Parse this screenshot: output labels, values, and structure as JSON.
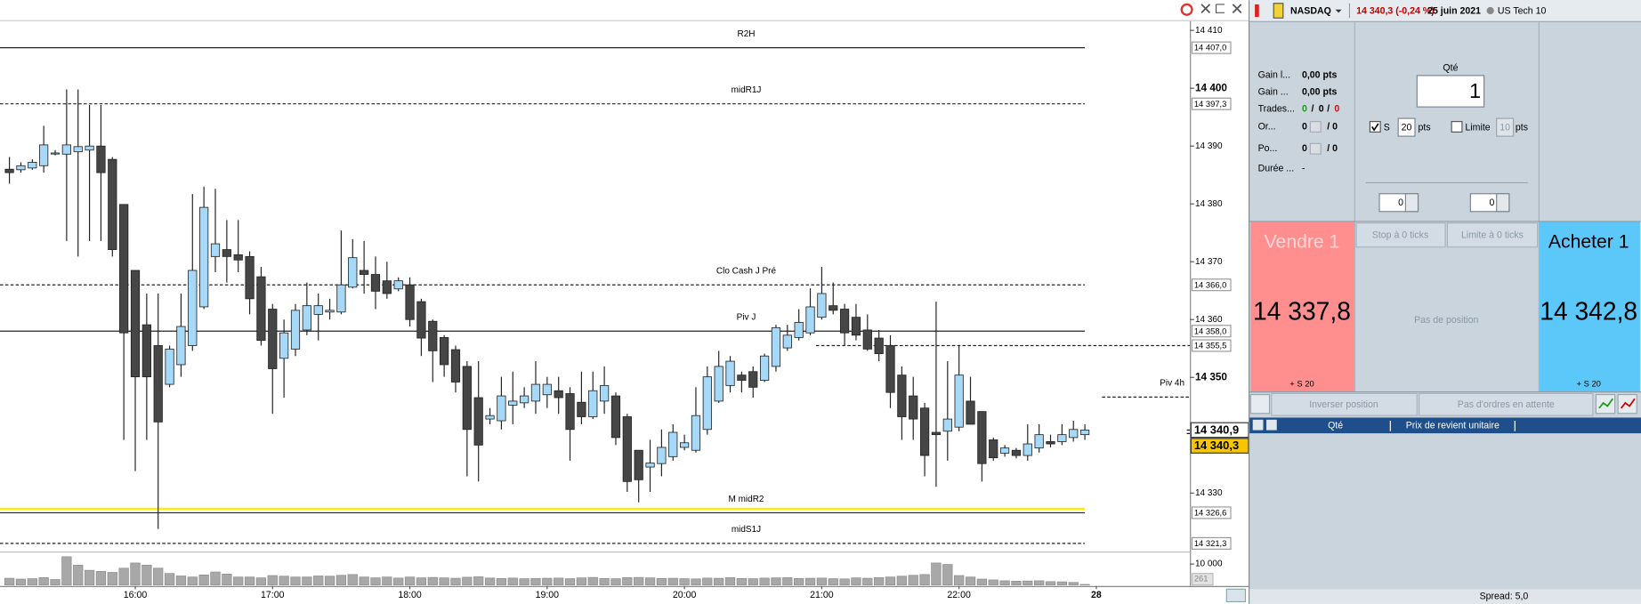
{
  "chart_data": {
    "type": "candlestick",
    "categories": [
      null,
      null,
      null,
      null,
      null,
      null,
      null,
      null,
      null,
      null,
      null,
      "16:00",
      null,
      null,
      null,
      null,
      null,
      null,
      null,
      null,
      null,
      null,
      null,
      "17:00",
      null,
      null,
      null,
      null,
      null,
      null,
      null,
      null,
      null,
      null,
      null,
      "18:00",
      null,
      null,
      null,
      null,
      null,
      null,
      null,
      null,
      null,
      null,
      null,
      "19:00",
      null,
      null,
      null,
      null,
      null,
      null,
      null,
      null,
      null,
      null,
      null,
      "20:00",
      null,
      null,
      null,
      null,
      null,
      null,
      null,
      null,
      null,
      null,
      null,
      "21:00",
      null,
      null,
      null,
      null,
      null,
      null,
      null,
      null,
      null,
      null,
      null,
      "22:00",
      null,
      null,
      null,
      null,
      null,
      null,
      null,
      null,
      null,
      null,
      null,
      "28",
      null,
      null,
      null,
      null,
      null,
      null,
      null,
      null
    ],
    "open": [
      14386.0,
      14385.9,
      14386.2,
      14386.6,
      14388.8,
      14388.6,
      14389.0,
      14389.3,
      14390.0,
      14387.7,
      14379.9,
      14368.5,
      14359.1,
      14355.5,
      14348.8,
      14352.2,
      14355.5,
      14362.2,
      14370.9,
      14372.1,
      14371.2,
      14370.9,
      14367.4,
      14361.8,
      14353.3,
      14354.9,
      14358.2,
      14360.9,
      14361.3,
      14361.3,
      14365.6,
      14368.5,
      14367.8,
      14366.7,
      14365.3,
      14366.0,
      14363.1,
      14359.7,
      14356.9,
      14354.8,
      14351.9,
      14346.5,
      14342.8,
      14342.5,
      14345.2,
      14345.6,
      14345.9,
      14347.0,
      14347.7,
      14347.2,
      14345.7,
      14343.2,
      14345.9,
      14346.8,
      14343.2,
      14337.4,
      14334.5,
      14335.1,
      14336.3,
      14337.9,
      14337.4,
      14341.0,
      14345.9,
      14348.6,
      14350.4,
      14351.0,
      14349.5,
      14351.9,
      14355.1,
      14356.9,
      14357.7,
      14360.4,
      14362.4,
      14361.8,
      14360.4,
      14358.2,
      14356.8,
      14355.5,
      14350.4,
      14346.8,
      14344.7,
      14340.5,
      14340.7,
      14341.4,
      14345.9,
      14344.1,
      14339.2,
      14336.9,
      14337.4,
      14336.5,
      14337.8,
      14338.9,
      14338.9,
      14339.6,
      14340.1,
      null,
      null,
      null,
      null,
      null,
      null,
      null,
      null,
      null
    ],
    "high": [
      14388.1,
      14387.2,
      14387.7,
      14393.5,
      14389.3,
      14399.8,
      14399.8,
      14397.1,
      14397.1,
      14388.1,
      14379.9,
      14368.5,
      14364.5,
      14364.5,
      14355.5,
      14364.5,
      14381.7,
      14383.0,
      14382.6,
      14377.2,
      14377.2,
      14371.8,
      14369.1,
      14362.7,
      14360.0,
      14362.7,
      14366.4,
      14364.5,
      14363.6,
      14375.4,
      14373.9,
      14373.6,
      14370.9,
      14370.0,
      14367.3,
      14367.3,
      14363.6,
      14360.0,
      14357.3,
      14355.5,
      14352.8,
      14352.8,
      14344.7,
      14350.1,
      14351.0,
      14348.3,
      14352.8,
      14350.1,
      14350.1,
      14348.3,
      14351.0,
      14351.0,
      14351.9,
      14347.4,
      14343.7,
      14337.4,
      14339.2,
      14341.0,
      14341.9,
      14340.1,
      14348.3,
      14351.9,
      14354.6,
      14353.7,
      14351.0,
      14351.9,
      14354.1,
      14359.1,
      14359.1,
      14361.8,
      14365.4,
      14369.1,
      14366.4,
      14362.7,
      14362.7,
      14360.9,
      14358.2,
      14357.3,
      14351.9,
      14350.1,
      14345.6,
      14363.1,
      14352.8,
      14355.5,
      14350.1,
      14344.1,
      14339.6,
      14338.3,
      14337.8,
      14341.9,
      14341.9,
      14340.1,
      14341.9,
      14342.5,
      14341.9,
      null,
      null,
      null,
      null,
      null,
      null,
      null,
      null,
      null
    ],
    "low": [
      14383.5,
      14385.4,
      14385.9,
      14385.4,
      14388.4,
      14373.6,
      14370.9,
      14373.6,
      14373.6,
      14370.9,
      14339.2,
      14333.8,
      14339.2,
      14323.8,
      14348.3,
      14350.1,
      14354.6,
      14361.8,
      14368.2,
      14366.4,
      14368.2,
      14360.9,
      14355.5,
      14343.7,
      14346.5,
      14353.7,
      14357.3,
      14356.4,
      14360.0,
      14360.9,
      14365.4,
      14364.5,
      14361.8,
      14363.6,
      14364.9,
      14358.8,
      14353.7,
      14349.2,
      14350.1,
      14347.4,
      14332.9,
      14332.0,
      14341.9,
      14341.0,
      14341.9,
      14344.7,
      14343.7,
      14344.7,
      14343.7,
      14335.6,
      14341.9,
      14342.8,
      14343.7,
      14338.3,
      14330.2,
      14328.4,
      14330.2,
      14332.9,
      14335.6,
      14337.4,
      14337.0,
      14340.1,
      14345.6,
      14347.4,
      14347.4,
      14346.5,
      14349.2,
      14351.0,
      14354.6,
      14356.4,
      14357.3,
      14360.0,
      14360.9,
      14355.5,
      14356.4,
      14354.6,
      14352.8,
      14344.7,
      14339.2,
      14339.2,
      14332.9,
      14331.1,
      14335.6,
      14340.7,
      14341.9,
      14332.0,
      14335.6,
      14336.3,
      14336.0,
      14335.6,
      14337.0,
      14337.9,
      14338.3,
      14338.9,
      14339.2,
      null,
      null,
      null,
      null,
      null,
      null,
      null,
      null,
      null
    ],
    "close": [
      14385.4,
      14386.6,
      14387.2,
      14390.2,
      14388.8,
      14390.2,
      14389.9,
      14390.0,
      14385.4,
      14372.1,
      14357.7,
      14350.1,
      14350.1,
      14342.3,
      14354.9,
      14358.8,
      14368.5,
      14379.4,
      14373.1,
      14370.9,
      14370.3,
      14363.6,
      14356.4,
      14351.5,
      14357.7,
      14361.6,
      14362.4,
      14362.4,
      14361.6,
      14366.0,
      14370.7,
      14367.8,
      14364.9,
      14364.5,
      14366.7,
      14360.0,
      14356.8,
      14354.6,
      14352.2,
      14349.2,
      14341.0,
      14338.3,
      14343.4,
      14346.8,
      14345.9,
      14346.8,
      14348.8,
      14348.8,
      14346.5,
      14341.0,
      14343.2,
      14347.7,
      14348.6,
      14339.6,
      14332.0,
      14332.3,
      14335.2,
      14337.9,
      14340.5,
      14338.7,
      14343.4,
      14350.1,
      14351.9,
      14352.8,
      14349.5,
      14348.3,
      14353.7,
      14358.6,
      14357.3,
      14359.5,
      14362.2,
      14364.5,
      14361.6,
      14357.7,
      14357.3,
      14354.9,
      14354.1,
      14347.4,
      14343.2,
      14342.8,
      14336.5,
      14340.1,
      14342.8,
      14350.4,
      14341.9,
      14335.1,
      14336.1,
      14337.8,
      14336.5,
      14338.5,
      14340.1,
      14338.5,
      14340.1,
      14341.0,
      14340.9,
      null,
      null,
      null,
      null,
      null,
      null,
      null,
      null,
      null
    ],
    "up_color": "#a6d8f7",
    "down_color": "#464646",
    "ylim": [
      14319.9,
      14411.6
    ],
    "yticks": [
      {
        "value": 14330,
        "label": "14 330"
      },
      {
        "value": 14350,
        "label": "14 350"
      },
      {
        "value": 14360,
        "label": "14 360"
      },
      {
        "value": 14370,
        "label": "14 370"
      },
      {
        "value": 14380,
        "label": "14 380"
      },
      {
        "value": 14390,
        "label": "14 390"
      },
      {
        "value": 14400,
        "label": "14 400"
      },
      {
        "value": 14410,
        "label": "14 410"
      }
    ],
    "levels": [
      {
        "name": "R2H",
        "value": 14407.0,
        "value_label": "14 407,0",
        "dashed": false
      },
      {
        "name": "midR1J",
        "value": 14397.3,
        "value_label": "14 397,3",
        "dashed": true
      },
      {
        "name": "Clo Cash J Pré",
        "value": 14366.0,
        "value_label": "14 366,0",
        "dashed": true
      },
      {
        "name": "Piv J",
        "value": 14358.0,
        "value_label": "14 358,0",
        "dashed": false
      },
      {
        "value": 14355.5,
        "value_label": "14 355,5",
        "dashed": true,
        "from": 71
      },
      {
        "name": "Piv 4h",
        "value": 14346.6,
        "dashed": true,
        "from": 96
      },
      {
        "value": 14327.3,
        "dashed": false,
        "color": "#ffee00"
      },
      {
        "name": "M midR2",
        "value": 14326.6,
        "value_label": "14 326,6",
        "dashed": false
      },
      {
        "name": "midS1J",
        "value": 14321.3,
        "value_label": "14 321,3",
        "dashed": true
      }
    ],
    "price_tags": [
      {
        "value": 14340.9,
        "label": "14 340,9",
        "color": "#ffffff"
      },
      {
        "value": 14340.3,
        "label": "14 340,3",
        "color": "#f7c600"
      }
    ],
    "volume": {
      "color": "#a8a8a8",
      "ylim": [
        0,
        15500
      ],
      "yticks": [
        {
          "value": 10000,
          "label": "10 000"
        }
      ],
      "values": [
        3200,
        2800,
        3000,
        3500,
        2600,
        13500,
        9500,
        7000,
        6500,
        6000,
        8000,
        10500,
        9500,
        8000,
        5500,
        4300,
        3800,
        4800,
        6200,
        5200,
        3800,
        3800,
        3400,
        4500,
        4200,
        3800,
        3800,
        4300,
        4200,
        4600,
        5000,
        3800,
        3400,
        3800,
        3300,
        3800,
        3400,
        3600,
        3400,
        3200,
        3700,
        3900,
        3300,
        3100,
        3300,
        3000,
        3100,
        3200,
        3300,
        3000,
        3400,
        3600,
        3100,
        3000,
        3500,
        3600,
        3400,
        3100,
        3200,
        3000,
        2900,
        3300,
        3200,
        3500,
        3100,
        3000,
        3300,
        3400,
        3500,
        3100,
        3200,
        3300,
        3000,
        2900,
        3400,
        3200,
        3500,
        3800,
        4200,
        4600,
        5000,
        10500,
        9800,
        4500,
        3800,
        2800,
        2400,
        2000,
        1800,
        1900,
        2000,
        1600,
        1500,
        1200,
        261,
        null,
        null,
        null,
        null,
        null,
        null,
        null,
        null,
        null
      ]
    }
  },
  "panel": {
    "header": {
      "instrument": "NASDAQ",
      "price": "14 340,3 (-0,24 %)",
      "date": "25 juin 2021",
      "market": "US Tech 10"
    },
    "stats": {
      "gain1_label": "Gain l...",
      "gain1": "0,00 pts",
      "gain2_label": "Gain ...",
      "gain2": "0,00 pts",
      "trades_label": "Trades...",
      "trades": [
        "0",
        "/",
        "0",
        "/",
        "0"
      ],
      "orders_label": "Or...",
      "orders": [
        "0",
        "/ 0"
      ],
      "positions_label": "Po...",
      "positions": [
        "0",
        "/ 0"
      ],
      "duration_label": "Durée ...",
      "duration": "-"
    },
    "form": {
      "qty_label": "Qté",
      "qty": "1",
      "stop_label": "S",
      "stop": "20",
      "stop_unit": "pts",
      "limit_label": "Limite",
      "limit": "10",
      "limit_unit": "pts",
      "spin": [
        "0",
        "0"
      ]
    },
    "sell": {
      "title": "Vendre 1",
      "price": "14 337,8",
      "stop": "+ S 20"
    },
    "buy": {
      "title": "Acheter 1",
      "price": "14 342,8",
      "stop": "+ S 20"
    },
    "stop_ticks": "Stop à 0 ticks",
    "limit_ticks": "Limite à 0 ticks",
    "position": "Pas de position",
    "reverse": "Inverser position",
    "pending": "Pas d'ordres en attente",
    "columns": [
      "Qté",
      "Prix de revient unitaire"
    ],
    "spread": "Spread:  5,0"
  }
}
